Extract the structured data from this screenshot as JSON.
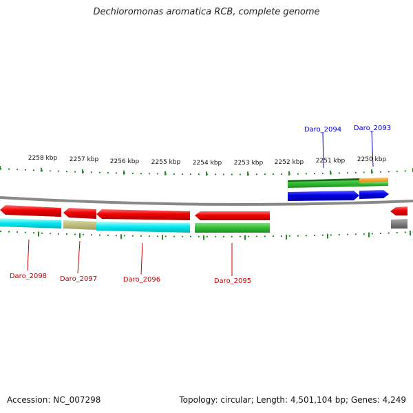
{
  "title": "Dechloromonas aromatica RCB, complete genome",
  "footer": {
    "accession": "Accession: NC_007298",
    "stats": "Topology: circular; Length: 4,501,104 bp; Genes: 4,249"
  },
  "scale_labels": [
    "2258 kbp",
    "2257 kbp",
    "2256 kbp",
    "2255 kbp",
    "2254 kbp",
    "2253 kbp",
    "2252 kbp",
    "2251 kbp",
    "2250 kbp"
  ],
  "genes_top": [
    {
      "name": "Daro_2094",
      "color": "#0000cc"
    },
    {
      "name": "Daro_2093",
      "color": "#0000cc"
    }
  ],
  "genes_bottom": [
    {
      "name": "Daro_2098",
      "color": "#cc0000"
    },
    {
      "name": "Daro_2097",
      "color": "#cc0000"
    },
    {
      "name": "Daro_2096",
      "color": "#cc0000"
    },
    {
      "name": "Daro_2095",
      "color": "#cc0000"
    }
  ],
  "colors": {
    "forward_cds": "#0000e6",
    "reverse_cds": "#ee0000",
    "backbone": "#888888",
    "ticks": "#228b22",
    "cog_green": "#33bb33",
    "cog_cyan": "#00e5ee",
    "cog_orange": "#ff9900",
    "cog_olive": "#b8b870",
    "cog_gray": "#777777"
  }
}
